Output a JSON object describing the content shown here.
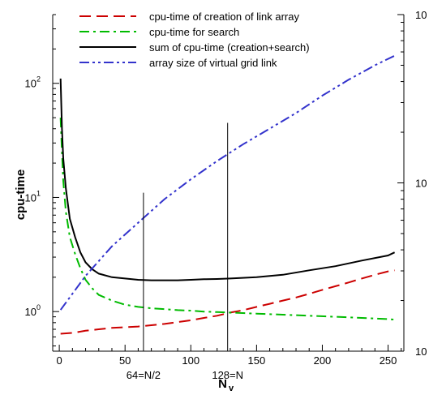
{
  "chart_data": {
    "type": "line",
    "xlabel": "N",
    "xlabel_sub": "v",
    "ylabel": "cpu-time",
    "xlim": [
      -5,
      262
    ],
    "xticks": [
      0,
      50,
      100,
      150,
      200,
      250
    ],
    "xtick_labels": [
      "0",
      "50",
      "100",
      "150",
      "200",
      "250"
    ],
    "yscale": "log",
    "ylim": [
      0.45,
      400
    ],
    "yticks": [
      1,
      10,
      100
    ],
    "ytick_labels": [
      "10",
      "10",
      "10"
    ],
    "ytick_exponents": [
      "0",
      "1",
      "2"
    ],
    "y2scale": "log",
    "y2lim": [
      10,
      1000
    ],
    "y2ticks": [
      10,
      100,
      1000
    ],
    "y2tick_labels": [
      "10",
      "10",
      "10"
    ],
    "grid": false,
    "legend_position": "top",
    "series": [
      {
        "name": "cpu-time of creation of link array",
        "color": "#cc0000",
        "dash": "dashed",
        "axis": "left",
        "x": [
          1,
          10,
          20,
          30,
          40,
          50,
          60,
          70,
          80,
          90,
          100,
          110,
          120,
          130,
          140,
          150,
          160,
          170,
          180,
          190,
          200,
          210,
          220,
          230,
          240,
          250,
          255
        ],
        "y": [
          0.64,
          0.65,
          0.68,
          0.7,
          0.72,
          0.73,
          0.74,
          0.76,
          0.78,
          0.81,
          0.84,
          0.88,
          0.92,
          0.98,
          1.03,
          1.1,
          1.17,
          1.25,
          1.33,
          1.43,
          1.55,
          1.67,
          1.8,
          1.95,
          2.1,
          2.25,
          2.3
        ]
      },
      {
        "name": "cpu-time for search",
        "color": "#00bb00",
        "dash": "dash-dot",
        "axis": "left",
        "x": [
          1,
          2,
          3,
          5,
          8,
          12,
          16,
          20,
          25,
          30,
          40,
          50,
          60,
          70,
          80,
          90,
          100,
          110,
          120,
          130,
          150,
          170,
          190,
          210,
          230,
          250,
          255
        ],
        "y": [
          50,
          25,
          14,
          7.5,
          4.5,
          3.2,
          2.4,
          1.9,
          1.6,
          1.4,
          1.25,
          1.15,
          1.1,
          1.07,
          1.05,
          1.03,
          1.02,
          1.0,
          0.99,
          0.98,
          0.96,
          0.94,
          0.92,
          0.9,
          0.88,
          0.86,
          0.85
        ]
      },
      {
        "name": "sum of cpu-time (creation+search)",
        "color": "#000000",
        "dash": "solid",
        "axis": "left",
        "x": [
          1,
          2,
          3,
          5,
          8,
          12,
          16,
          20,
          25,
          30,
          40,
          50,
          60,
          70,
          80,
          90,
          100,
          110,
          120,
          130,
          150,
          170,
          190,
          210,
          230,
          250,
          255
        ],
        "y": [
          110,
          40,
          22,
          12,
          6.5,
          4.5,
          3.3,
          2.7,
          2.35,
          2.15,
          2.0,
          1.95,
          1.9,
          1.88,
          1.88,
          1.88,
          1.9,
          1.92,
          1.93,
          1.95,
          2.0,
          2.1,
          2.3,
          2.5,
          2.8,
          3.1,
          3.3
        ]
      },
      {
        "name": "array size of virtual grid link",
        "color": "#3333cc",
        "dash": "dash-dot-dot",
        "axis": "right",
        "x": [
          1,
          20,
          40,
          60,
          80,
          100,
          120,
          140,
          160,
          180,
          200,
          220,
          240,
          255
        ],
        "y": [
          17.6,
          28,
          42,
          58,
          80,
          105,
          135,
          170,
          210,
          260,
          330,
          410,
          500,
          570
        ]
      }
    ],
    "annotations": [
      {
        "text": "64=N/2",
        "x": 64
      },
      {
        "text": "128=N",
        "x": 128
      }
    ]
  }
}
